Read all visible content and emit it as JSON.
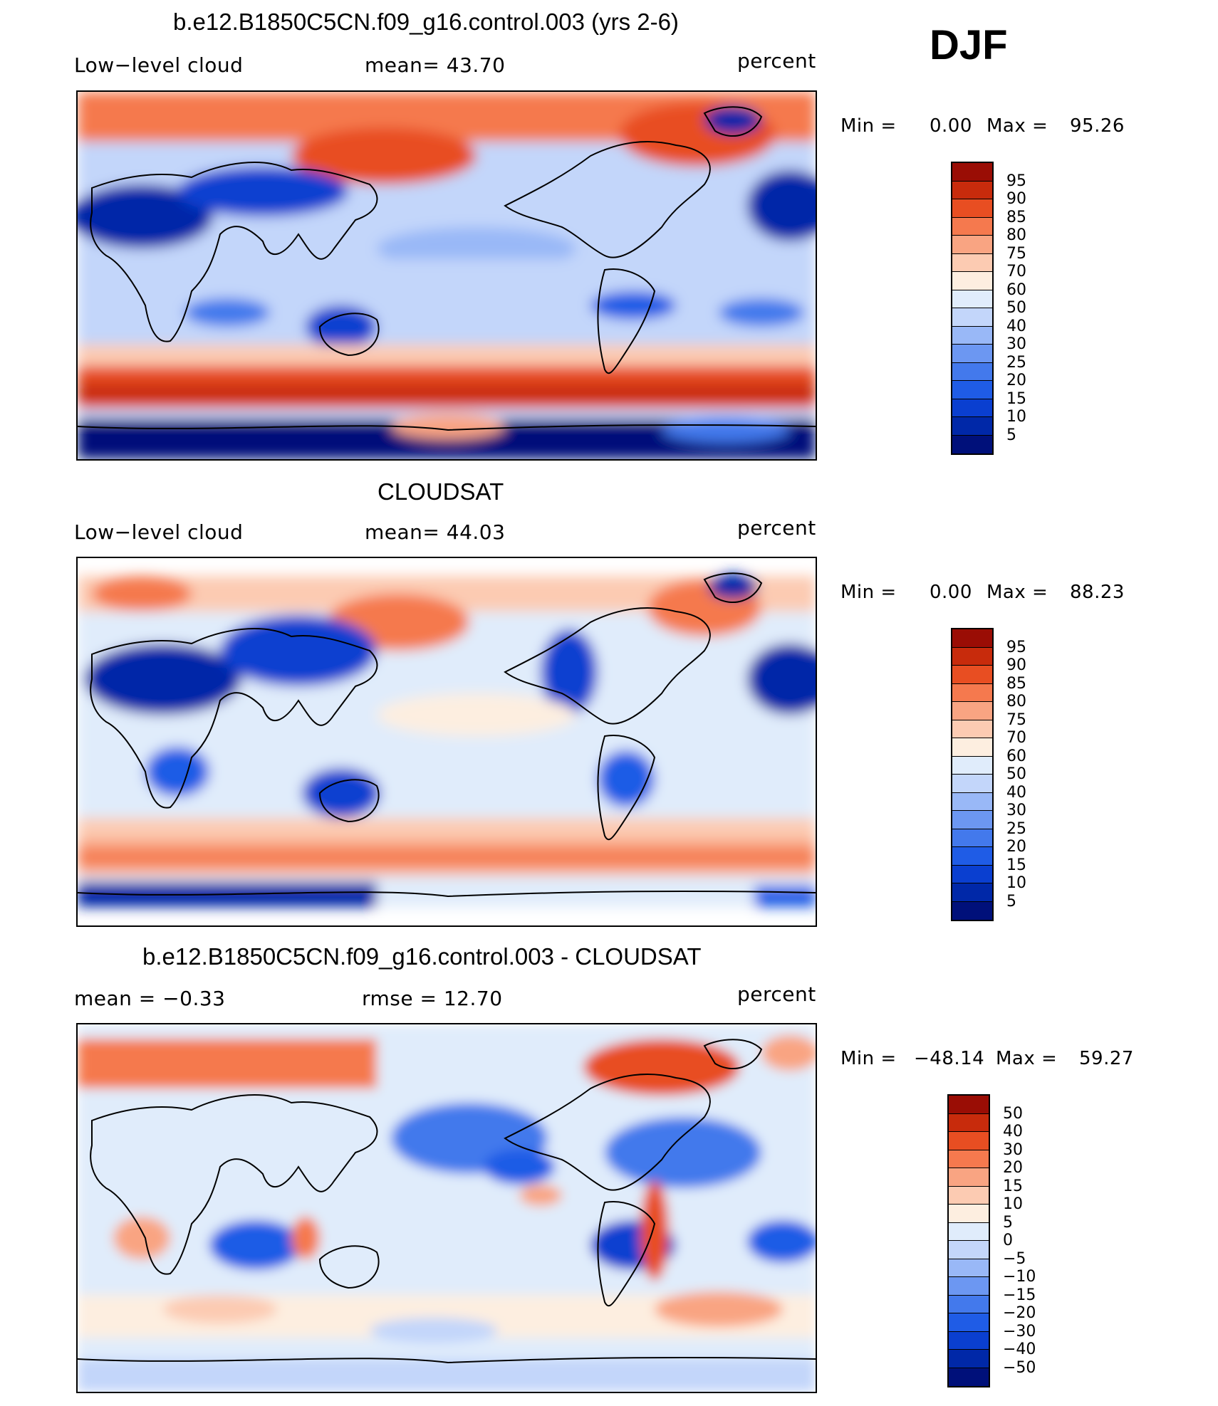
{
  "season": "DJF",
  "units": "percent",
  "palette": {
    "bounded": [
      "#00107a",
      "#0028a8",
      "#0a3fd0",
      "#1f5ce6",
      "#4379ec",
      "#6c97f2",
      "#99b8f7",
      "#c3d6fa",
      "#e0ecfb",
      "#fdeee0",
      "#fccbb2",
      "#f9a482",
      "#f5794e",
      "#e84e22",
      "#c82b0c",
      "#9a0d05"
    ],
    "diff": [
      "#00107a",
      "#0028a8",
      "#0a3fd0",
      "#1f5ce6",
      "#4379ec",
      "#6c97f2",
      "#99b8f7",
      "#c3d6fa",
      "#e0ecfb",
      "#fdeee0",
      "#fccbb2",
      "#f9a482",
      "#f5794e",
      "#e84e22",
      "#c82b0c",
      "#9a0d05"
    ]
  },
  "panels": [
    {
      "title": "b.e12.B1850C5CN.f09_g16.control.003 (yrs 2-6)",
      "left_label": "Low−level  cloud",
      "mid_label": "mean=   43.70",
      "units": "percent",
      "min_label": "Min  =",
      "min_value": "0.00",
      "max_label": "Max  =",
      "max_value": "95.26",
      "colorbar_labels": [
        "95",
        "90",
        "85",
        "80",
        "75",
        "70",
        "60",
        "50",
        "40",
        "30",
        "25",
        "20",
        "15",
        "10",
        "5"
      ],
      "kind": "model"
    },
    {
      "title": "CLOUDSAT",
      "left_label": "Low−level  cloud",
      "mid_label": "mean=   44.03",
      "units": "percent",
      "min_label": "Min  =",
      "min_value": "0.00",
      "max_label": "Max  =",
      "max_value": "88.23",
      "colorbar_labels": [
        "95",
        "90",
        "85",
        "80",
        "75",
        "70",
        "60",
        "50",
        "40",
        "30",
        "25",
        "20",
        "15",
        "10",
        "5"
      ],
      "kind": "obs"
    },
    {
      "title": "b.e12.B1850C5CN.f09_g16.control.003 - CLOUDSAT",
      "left_label": "mean  =   −0.33",
      "mid_label": "rmse  =   12.70",
      "units": "percent",
      "min_label": "Min  =",
      "min_value": "−48.14",
      "max_label": "Max  =",
      "max_value": "59.27",
      "colorbar_labels": [
        "50",
        "40",
        "30",
        "20",
        "15",
        "10",
        "5",
        "0",
        "−5",
        "−10",
        "−15",
        "−20",
        "−30",
        "−40",
        "−50"
      ],
      "kind": "diff"
    }
  ]
}
